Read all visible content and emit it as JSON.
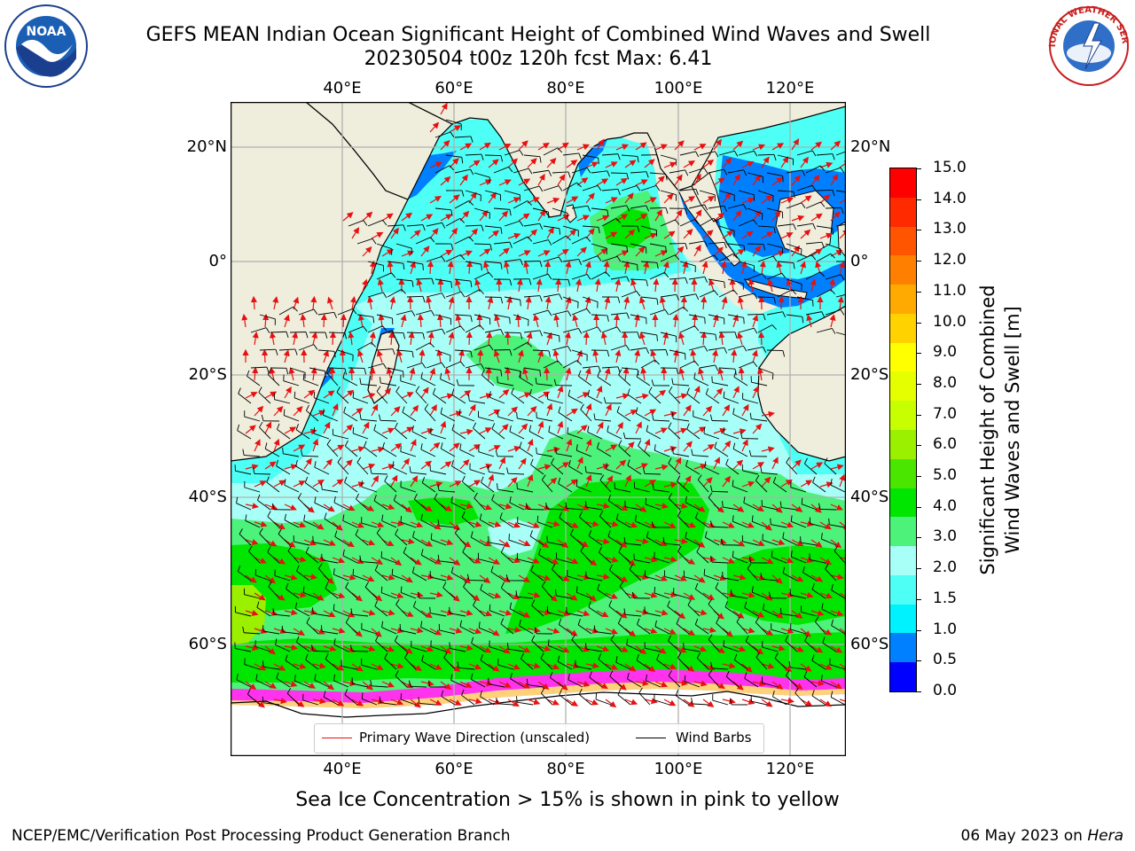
{
  "title": {
    "line1": "GEFS MEAN Indian Ocean Significant Height of Combined Wind Waves and Swell",
    "line2": "20230504 t00z 120h fcst   Max: 6.41"
  },
  "map": {
    "lon_labels": [
      "40°E",
      "60°E",
      "80°E",
      "100°E",
      "120°E"
    ],
    "lat_labels": [
      "20°N",
      "0°",
      "20°S",
      "40°S",
      "60°S"
    ],
    "legend": {
      "primary_wave": "Primary Wave Direction (unscaled)",
      "wind_barbs": "Wind Barbs",
      "primary_wave_color": "#e81010",
      "wind_barbs_color": "#000000"
    },
    "colors": {
      "land": "#efeddc",
      "ice": "#ffffff"
    }
  },
  "colorbar": {
    "title_line1": "Significant Height of Combined",
    "title_line2": "Wind Waves and Swell [m]",
    "labels": [
      "15.0",
      "14.0",
      "13.0",
      "12.0",
      "11.0",
      "10.0",
      "9.0",
      "8.0",
      "7.0",
      "6.0",
      "5.0",
      "4.0",
      "3.0",
      "2.0",
      "1.5",
      "1.0",
      "0.5",
      "0.0"
    ],
    "colors_top_to_bottom": [
      "#ff0000",
      "#ff2a00",
      "#ff5500",
      "#ff8000",
      "#ffaa00",
      "#ffd200",
      "#ffff00",
      "#e6ff00",
      "#c8ff00",
      "#9bf000",
      "#4be600",
      "#00e600",
      "#4cf27a",
      "#a8fff8",
      "#4dfff5",
      "#00f2ff",
      "#0080ff",
      "#0000ff"
    ]
  },
  "caption": "Sea Ice Concentration > 15% is shown in pink to yellow",
  "footer": {
    "left": "NCEP/EMC/Verification Post Processing Product Generation Branch",
    "right_date": "06 May 2023 on ",
    "right_host": "Hera"
  },
  "logos": {
    "noaa_text": "NOAA",
    "nws_text": "NATIONAL WEATHER SERVICE"
  }
}
